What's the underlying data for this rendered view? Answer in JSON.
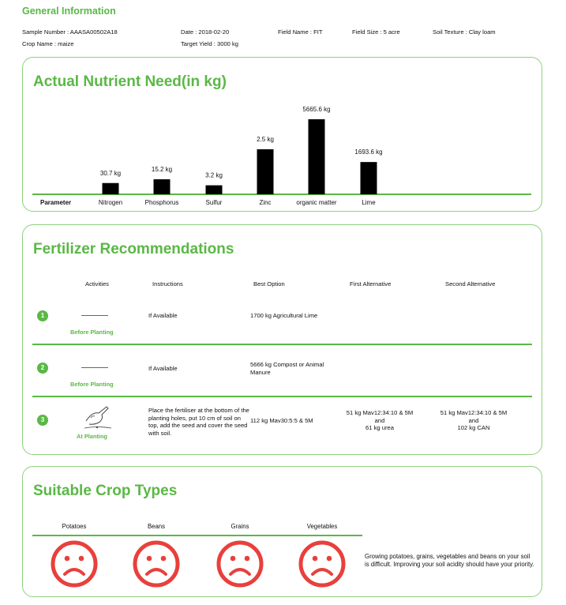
{
  "general": {
    "title": "General Information",
    "sample_number": "Sample Number : AAASA00502A18",
    "crop_name": "Crop Name : maize",
    "date": "Date : 2018-02-20",
    "target_yield": "Target Yield : 3000 kg",
    "field_name": "Field Name : FIT",
    "field_size": "Field Size : 5 acre",
    "soil_texture": "Soil Texture : Clay loam"
  },
  "nutrient": {
    "title": "Actual Nutrient Need(in kg)",
    "param_label": "Parameter"
  },
  "chart_data": {
    "type": "bar",
    "title": "Actual Nutrient Need(in kg)",
    "xlabel": "Parameter",
    "ylabel": "",
    "categories": [
      "Nitrogen",
      "Phosphorus",
      "Sulfur",
      "Zinc",
      "organic matter",
      "Lime"
    ],
    "values": [
      30.7,
      15.2,
      3.2,
      2.5,
      5665.6,
      1693.6
    ],
    "data_labels": [
      "30.7 kg",
      "15.2 kg",
      "3.2 kg",
      "2.5 kg",
      "5665.6 kg",
      "1693.6 kg"
    ],
    "bar_color": "#000000",
    "axis_color": "#5ab846",
    "grid": false,
    "legend": "none",
    "note": "bars drawn as relative indicators (not to a common linear scale) as in the original"
  },
  "fertilizer": {
    "title": "Fertilizer Recommendations",
    "headers": {
      "activities": "Activities",
      "instructions": "Instructions",
      "best": "Best Option",
      "first": "First Alternative",
      "second": "Second Alternative"
    },
    "rows": [
      {
        "num": "1",
        "stage": "Before Planting",
        "instruction": "If Available",
        "best": "1700 kg Agricultural Lime",
        "first": "",
        "second": ""
      },
      {
        "num": "2",
        "stage": "Before Planting",
        "instruction": "If Available",
        "best": "5666 kg Compost or Animal Manure",
        "first": "",
        "second": ""
      },
      {
        "num": "3",
        "stage": "At Planting",
        "instruction": "Place the fertiliser at the bottom of the planting holes, put 10 cm of soil on top, add the seed and cover the seed with soil.",
        "best": "112 kg Mav30:5:5 & 5M",
        "first_l1": "51 kg Mav12:34:10 & 5M",
        "first_l2": "and",
        "first_l3": "61 kg urea",
        "second_l1": "51 kg Mav12:34:10 & 5M",
        "second_l2": "and",
        "second_l3": "102 kg CAN"
      }
    ]
  },
  "crops": {
    "title": "Suitable Crop Types",
    "items": [
      {
        "name": "Potatoes",
        "status_icon": "sad-face-icon"
      },
      {
        "name": "Beans",
        "status_icon": "sad-face-icon"
      },
      {
        "name": "Grains",
        "status_icon": "sad-face-icon"
      },
      {
        "name": "Vegetables",
        "status_icon": "sad-face-icon"
      }
    ],
    "note": "Growing potatoes, grains, vegetables and beans on your soil is difficult. Improving your soil acidity should have your priority.",
    "face_color": "#e8403c"
  }
}
